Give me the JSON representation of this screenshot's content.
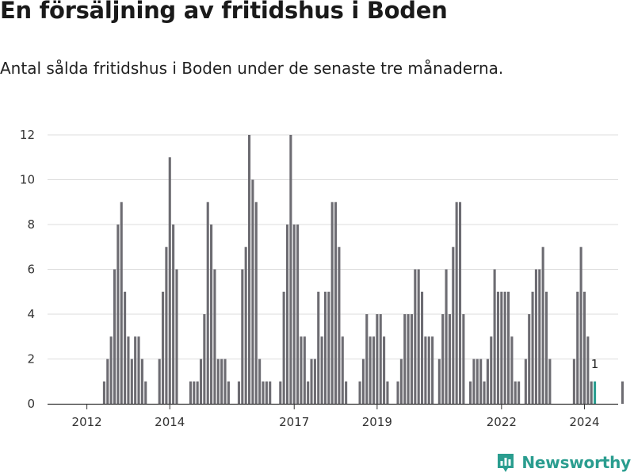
{
  "brand": {
    "name": "Newsworthy",
    "color": "#2a9d8f"
  },
  "chart_data": {
    "type": "bar",
    "title": "En försäljning av fritidshus i Boden",
    "subtitle": "Antal sålda fritidshus i Boden under de senaste tre månaderna.",
    "xlabel": "",
    "ylabel": "",
    "ylim": [
      0,
      12
    ],
    "yticks": [
      0,
      2,
      4,
      6,
      8,
      10,
      12
    ],
    "grid": true,
    "bar_color": "#6d6c72",
    "highlight_color": "#2a9d8f",
    "xticks": [
      {
        "label": "2012",
        "index": 3
      },
      {
        "label": "2014",
        "index": 27
      },
      {
        "label": "2017",
        "index": 63
      },
      {
        "label": "2019",
        "index": 87
      },
      {
        "label": "2022",
        "index": 123
      },
      {
        "label": "2024",
        "index": 147
      }
    ],
    "values": [
      0,
      0,
      0,
      0,
      0,
      0,
      0,
      0,
      1,
      2,
      3,
      6,
      8,
      9,
      5,
      3,
      2,
      3,
      3,
      2,
      1,
      0,
      0,
      0,
      2,
      5,
      7,
      11,
      8,
      6,
      0,
      0,
      0,
      1,
      1,
      1,
      2,
      4,
      9,
      8,
      6,
      2,
      2,
      2,
      1,
      0,
      0,
      1,
      6,
      7,
      12,
      10,
      9,
      2,
      1,
      1,
      1,
      0,
      0,
      1,
      5,
      8,
      12,
      8,
      8,
      3,
      3,
      1,
      2,
      2,
      5,
      3,
      5,
      5,
      9,
      9,
      7,
      3,
      1,
      0,
      0,
      0,
      1,
      2,
      4,
      3,
      3,
      4,
      4,
      3,
      1,
      0,
      0,
      1,
      2,
      4,
      4,
      4,
      6,
      6,
      5,
      3,
      3,
      3,
      0,
      2,
      4,
      6,
      4,
      7,
      9,
      9,
      4,
      0,
      1,
      2,
      2,
      2,
      1,
      2,
      3,
      6,
      5,
      5,
      5,
      5,
      3,
      1,
      1,
      0,
      2,
      4,
      5,
      6,
      6,
      7,
      5,
      2,
      0,
      0,
      0,
      0,
      0,
      0,
      2,
      5,
      7,
      5,
      3,
      1,
      1,
      0,
      0,
      0,
      0,
      0,
      0,
      0,
      1
    ],
    "highlight_index": 150,
    "highlight_label": "1"
  }
}
